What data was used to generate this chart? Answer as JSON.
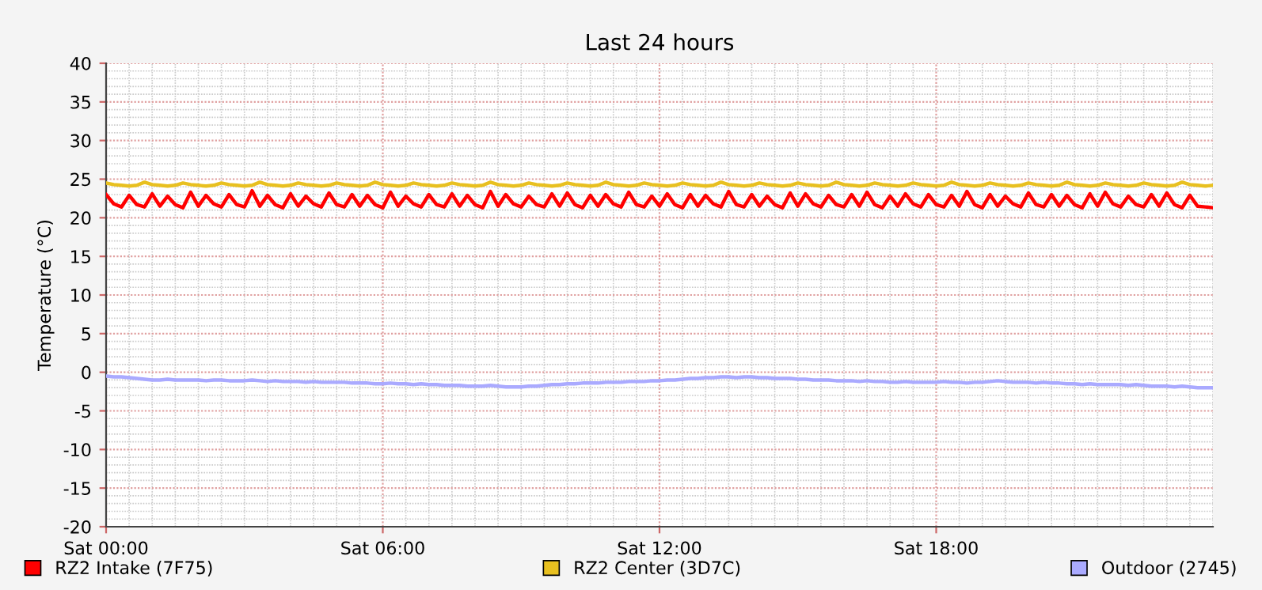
{
  "chart_data": {
    "type": "line",
    "title": "Last 24 hours",
    "ylabel": "Temperature (°C)",
    "categories": [
      "Sat 00:00",
      null,
      null,
      null,
      null,
      null,
      null,
      null,
      null,
      null,
      null,
      null,
      null,
      null,
      null,
      null,
      null,
      null,
      null,
      null,
      null,
      null,
      null,
      null,
      null,
      null,
      null,
      null,
      null,
      null,
      null,
      null,
      null,
      null,
      null,
      null,
      "Sat 06:00",
      null,
      null,
      null,
      null,
      null,
      null,
      null,
      null,
      null,
      null,
      null,
      null,
      null,
      null,
      null,
      null,
      null,
      null,
      null,
      null,
      null,
      null,
      null,
      null,
      null,
      null,
      null,
      null,
      null,
      null,
      null,
      null,
      null,
      null,
      null,
      "Sat 12:00",
      null,
      null,
      null,
      null,
      null,
      null,
      null,
      null,
      null,
      null,
      null,
      null,
      null,
      null,
      null,
      null,
      null,
      null,
      null,
      null,
      null,
      null,
      null,
      null,
      null,
      null,
      null,
      null,
      null,
      null,
      null,
      null,
      null,
      null,
      null,
      "Sat 18:00",
      null,
      null,
      null,
      null,
      null,
      null,
      null,
      null,
      null,
      null,
      null,
      null,
      null,
      null,
      null,
      null,
      null,
      null,
      null,
      null,
      null,
      null,
      null,
      null,
      null,
      null,
      null,
      null,
      null,
      null,
      null,
      null,
      null,
      null,
      null,
      null
    ],
    "series": [
      {
        "name": "RZ2 Intake (7F75)",
        "color": "#ff0000",
        "values": [
          23.0,
          21.8,
          21.4,
          22.9,
          21.7,
          21.4,
          23.1,
          21.5,
          22.8,
          21.7,
          21.3,
          23.3,
          21.5,
          22.9,
          21.8,
          21.4,
          23.0,
          21.7,
          21.4,
          23.5,
          21.5,
          22.9,
          21.7,
          21.3,
          23.1,
          21.5,
          22.8,
          21.8,
          21.4,
          23.2,
          21.7,
          21.4,
          23.0,
          21.5,
          22.9,
          21.7,
          21.3,
          23.3,
          21.5,
          22.8,
          21.8,
          21.4,
          23.0,
          21.7,
          21.4,
          23.1,
          21.5,
          22.9,
          21.7,
          21.3,
          23.4,
          21.5,
          23.0,
          21.8,
          21.4,
          22.8,
          21.7,
          21.4,
          23.1,
          21.5,
          23.2,
          21.7,
          21.3,
          22.9,
          21.5,
          23.0,
          21.8,
          21.4,
          23.3,
          21.7,
          21.4,
          22.8,
          21.5,
          23.1,
          21.7,
          21.3,
          23.0,
          21.5,
          22.9,
          21.8,
          21.4,
          23.4,
          21.7,
          21.4,
          23.0,
          21.5,
          22.8,
          21.7,
          21.3,
          23.2,
          21.5,
          23.1,
          21.8,
          21.4,
          22.9,
          21.7,
          21.4,
          23.0,
          21.5,
          23.3,
          21.7,
          21.3,
          22.8,
          21.5,
          23.1,
          21.8,
          21.4,
          23.0,
          21.7,
          21.4,
          22.9,
          21.5,
          23.4,
          21.7,
          21.3,
          23.0,
          21.5,
          22.8,
          21.8,
          21.4,
          23.2,
          21.7,
          21.4,
          23.0,
          21.5,
          22.9,
          21.7,
          21.3,
          23.1,
          21.5,
          23.3,
          21.8,
          21.4,
          22.8,
          21.7,
          21.4,
          23.0,
          21.5,
          23.2,
          21.7,
          21.3,
          22.9,
          21.5,
          21.4,
          21.3
        ]
      },
      {
        "name": "RZ2 Center (3D7C)",
        "color": "#e8c020",
        "values": [
          24.5,
          24.3,
          24.2,
          24.1,
          24.2,
          24.6,
          24.3,
          24.2,
          24.1,
          24.2,
          24.5,
          24.3,
          24.2,
          24.1,
          24.2,
          24.5,
          24.3,
          24.2,
          24.1,
          24.2,
          24.6,
          24.3,
          24.2,
          24.1,
          24.2,
          24.5,
          24.3,
          24.2,
          24.1,
          24.2,
          24.5,
          24.3,
          24.2,
          24.1,
          24.2,
          24.6,
          24.3,
          24.2,
          24.1,
          24.2,
          24.5,
          24.3,
          24.2,
          24.1,
          24.2,
          24.5,
          24.3,
          24.2,
          24.1,
          24.2,
          24.6,
          24.3,
          24.2,
          24.1,
          24.2,
          24.5,
          24.3,
          24.2,
          24.1,
          24.2,
          24.5,
          24.3,
          24.2,
          24.1,
          24.2,
          24.6,
          24.3,
          24.2,
          24.1,
          24.2,
          24.5,
          24.3,
          24.2,
          24.1,
          24.2,
          24.5,
          24.3,
          24.2,
          24.1,
          24.2,
          24.6,
          24.3,
          24.2,
          24.1,
          24.2,
          24.5,
          24.3,
          24.2,
          24.1,
          24.2,
          24.5,
          24.3,
          24.2,
          24.1,
          24.2,
          24.6,
          24.3,
          24.2,
          24.1,
          24.2,
          24.5,
          24.3,
          24.2,
          24.1,
          24.2,
          24.5,
          24.3,
          24.2,
          24.1,
          24.2,
          24.6,
          24.3,
          24.2,
          24.1,
          24.2,
          24.5,
          24.3,
          24.2,
          24.1,
          24.2,
          24.5,
          24.3,
          24.2,
          24.1,
          24.2,
          24.6,
          24.3,
          24.2,
          24.1,
          24.2,
          24.5,
          24.3,
          24.2,
          24.1,
          24.2,
          24.5,
          24.3,
          24.2,
          24.1,
          24.2,
          24.6,
          24.3,
          24.2,
          24.1,
          24.2
        ]
      },
      {
        "name": "Outdoor (2745)",
        "color": "#aaaaff",
        "values": [
          -0.5,
          -0.6,
          -0.6,
          -0.7,
          -0.8,
          -0.9,
          -1.0,
          -1.0,
          -0.9,
          -1.0,
          -1.0,
          -1.0,
          -1.0,
          -1.1,
          -1.0,
          -1.0,
          -1.1,
          -1.1,
          -1.1,
          -1.0,
          -1.1,
          -1.2,
          -1.1,
          -1.2,
          -1.2,
          -1.2,
          -1.3,
          -1.2,
          -1.3,
          -1.3,
          -1.3,
          -1.3,
          -1.4,
          -1.4,
          -1.4,
          -1.5,
          -1.5,
          -1.4,
          -1.5,
          -1.5,
          -1.6,
          -1.5,
          -1.6,
          -1.6,
          -1.7,
          -1.7,
          -1.7,
          -1.8,
          -1.8,
          -1.8,
          -1.7,
          -1.8,
          -1.9,
          -1.9,
          -1.9,
          -1.8,
          -1.8,
          -1.7,
          -1.6,
          -1.6,
          -1.5,
          -1.5,
          -1.4,
          -1.4,
          -1.4,
          -1.3,
          -1.3,
          -1.3,
          -1.2,
          -1.2,
          -1.2,
          -1.1,
          -1.1,
          -1.0,
          -1.0,
          -0.9,
          -0.8,
          -0.8,
          -0.7,
          -0.7,
          -0.6,
          -0.6,
          -0.7,
          -0.6,
          -0.6,
          -0.7,
          -0.7,
          -0.8,
          -0.8,
          -0.8,
          -0.9,
          -0.9,
          -1.0,
          -1.0,
          -1.0,
          -1.1,
          -1.1,
          -1.1,
          -1.2,
          -1.1,
          -1.2,
          -1.2,
          -1.3,
          -1.3,
          -1.2,
          -1.3,
          -1.3,
          -1.3,
          -1.3,
          -1.2,
          -1.3,
          -1.3,
          -1.4,
          -1.3,
          -1.3,
          -1.2,
          -1.1,
          -1.2,
          -1.3,
          -1.3,
          -1.3,
          -1.4,
          -1.3,
          -1.4,
          -1.4,
          -1.5,
          -1.5,
          -1.6,
          -1.5,
          -1.6,
          -1.6,
          -1.6,
          -1.6,
          -1.7,
          -1.6,
          -1.7,
          -1.8,
          -1.8,
          -1.8,
          -1.9,
          -1.8,
          -1.9,
          -2.0,
          -2.0,
          -2.0
        ]
      }
    ],
    "ylim": [
      -20,
      40
    ],
    "yticks": [
      -20,
      -15,
      -10,
      -5,
      0,
      5,
      10,
      15,
      20,
      25,
      30,
      35,
      40
    ],
    "grid": true,
    "legend": "bottom",
    "marker": "none",
    "line_style": "solid"
  }
}
